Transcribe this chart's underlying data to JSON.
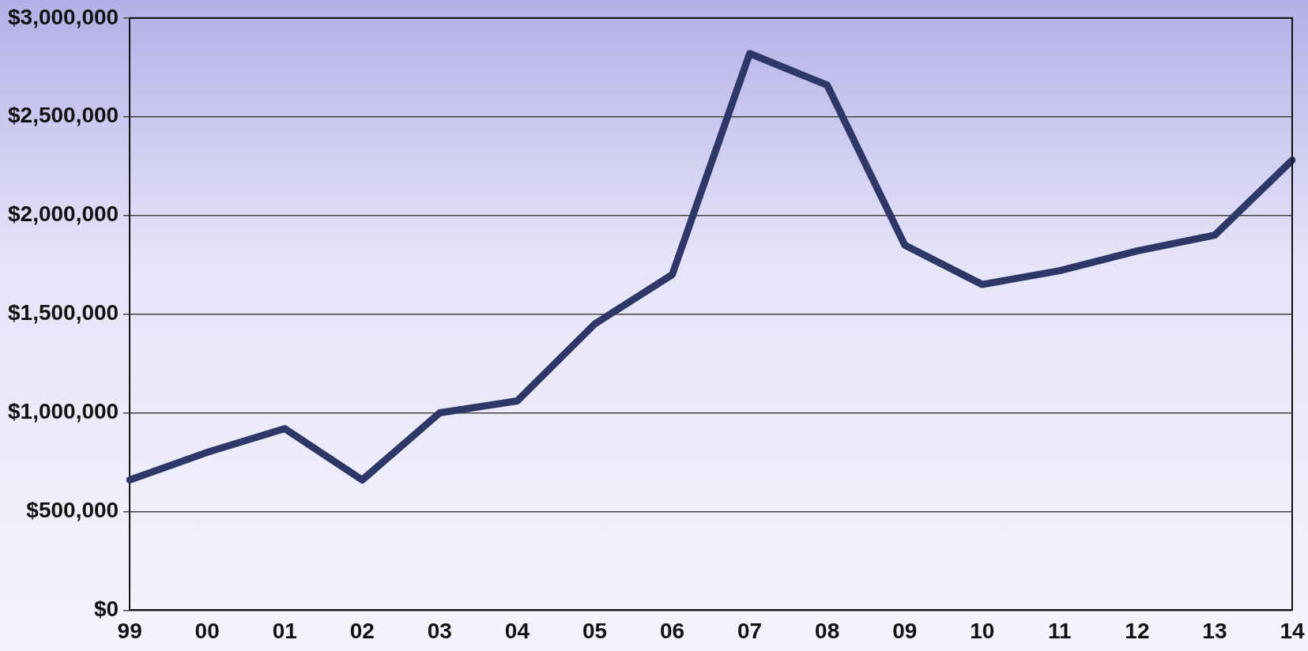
{
  "chart_data": {
    "type": "line",
    "categories": [
      "99",
      "00",
      "01",
      "02",
      "03",
      "04",
      "05",
      "06",
      "07",
      "08",
      "09",
      "10",
      "11",
      "12",
      "13",
      "14"
    ],
    "series": [
      {
        "color": "#2e3868",
        "values": [
          660000,
          800000,
          920000,
          660000,
          1000000,
          1060000,
          1450000,
          1700000,
          2820000,
          2660000,
          1850000,
          1650000,
          1720000,
          1820000,
          1900000,
          2280000
        ]
      }
    ],
    "ylim": [
      0,
      3000000
    ],
    "yticks": [
      {
        "value": 0,
        "label": "$0"
      },
      {
        "value": 500000,
        "label": "$500,000"
      },
      {
        "value": 1000000,
        "label": "$1,000,000"
      },
      {
        "value": 1500000,
        "label": "$1,500,000"
      },
      {
        "value": 2000000,
        "label": "$2,000,000"
      },
      {
        "value": 2500000,
        "label": "$2,500,000"
      },
      {
        "value": 3000000,
        "label": "$3,000,000"
      }
    ],
    "grid": "y",
    "legend": false,
    "marker": "none",
    "line_style": "solid"
  }
}
